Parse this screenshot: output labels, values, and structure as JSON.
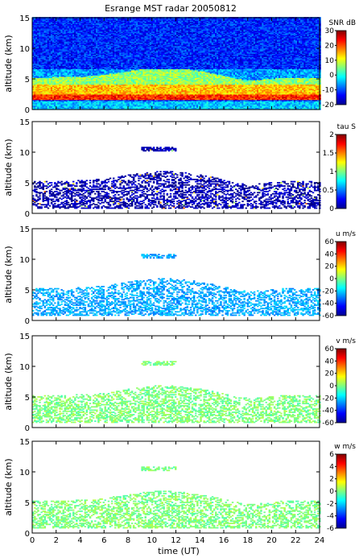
{
  "figure": {
    "title": "Esrange MST radar 20050812",
    "xlabel": "time (UT)",
    "ylabel": "altitude (km)",
    "xticks": [
      "0",
      "2",
      "4",
      "6",
      "8",
      "10",
      "12",
      "14",
      "16",
      "18",
      "20",
      "22",
      "24"
    ],
    "yticks": [
      "0",
      "5",
      "10",
      "15"
    ]
  },
  "chart_data": [
    {
      "type": "heatmap",
      "quantity": "SNR",
      "colorbar_title": "SNR dB",
      "colorbar_ticks": [
        "30",
        "20",
        "10",
        "0",
        "-10",
        "-20"
      ],
      "vlim": [
        -20,
        30
      ],
      "xlim": [
        0,
        24
      ],
      "ylim": [
        0,
        15
      ],
      "layers": [
        {
          "altitude": [
            1.5,
            2.5
          ],
          "value": 22
        },
        {
          "altitude": [
            2.5,
            4.0
          ],
          "value": 14
        },
        {
          "altitude": [
            4.0,
            6.5
          ],
          "value": 6
        },
        {
          "altitude": [
            9.5,
            10.5
          ],
          "value": -4
        },
        {
          "altitude": [
            6.5,
            15.0
          ],
          "value": -12
        }
      ]
    },
    {
      "type": "heatmap",
      "quantity": "tau",
      "colorbar_title": "tau S",
      "colorbar_ticks": [
        "2",
        "1.5",
        "1",
        "0.5",
        "0"
      ],
      "vlim": [
        0,
        2
      ],
      "xlim": [
        0,
        24
      ],
      "ylim": [
        0,
        15
      ],
      "dominant_value": 0.1
    },
    {
      "type": "heatmap",
      "quantity": "u",
      "colorbar_title": "u m/s",
      "colorbar_ticks": [
        "60",
        "40",
        "20",
        "0",
        "-20",
        "-40",
        "-60"
      ],
      "vlim": [
        -60,
        60
      ],
      "xlim": [
        0,
        24
      ],
      "ylim": [
        0,
        15
      ],
      "dominant_value": -25
    },
    {
      "type": "heatmap",
      "quantity": "v",
      "colorbar_title": "v m/s",
      "colorbar_ticks": [
        "60",
        "40",
        "20",
        "0",
        "-20",
        "-40",
        "-60"
      ],
      "vlim": [
        -60,
        60
      ],
      "xlim": [
        0,
        24
      ],
      "ylim": [
        0,
        15
      ],
      "dominant_value": 0
    },
    {
      "type": "heatmap",
      "quantity": "w",
      "colorbar_title": "w m/s",
      "colorbar_ticks": [
        "6",
        "4",
        "2",
        "0",
        "-2",
        "-4",
        "-6"
      ],
      "vlim": [
        -6,
        6
      ],
      "xlim": [
        0,
        24
      ],
      "ylim": [
        0,
        15
      ],
      "dominant_value": 0
    }
  ]
}
